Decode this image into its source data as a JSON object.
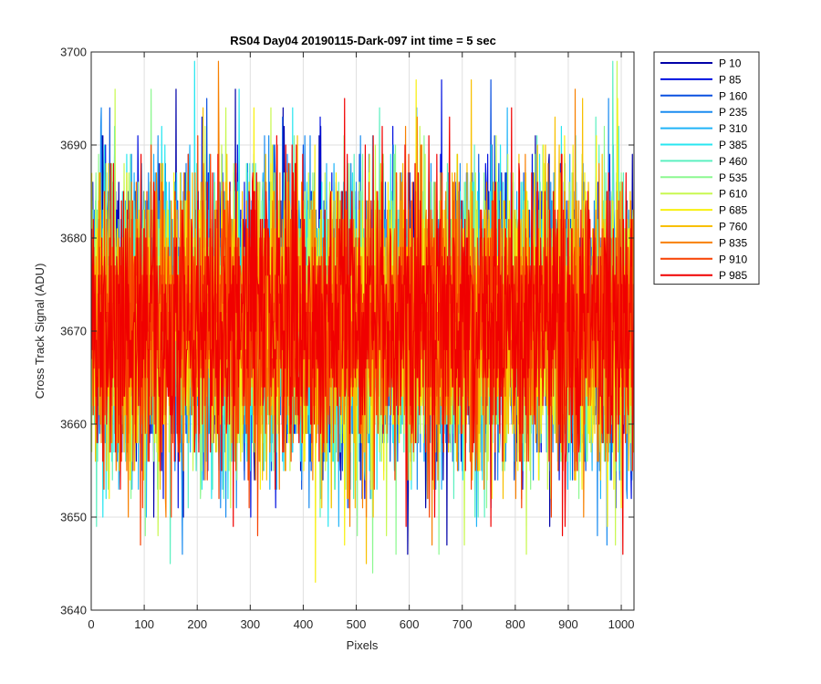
{
  "chart_data": {
    "type": "line",
    "title": "RS04 Day04 20190115-Dark-097 int time = 5 sec",
    "xlabel": "Pixels",
    "ylabel": "Cross Track Signal (ADU)",
    "xlim": [
      0,
      1024
    ],
    "ylim": [
      3640,
      3700
    ],
    "xticks": [
      0,
      100,
      200,
      300,
      400,
      500,
      600,
      700,
      800,
      900,
      1000
    ],
    "yticks": [
      3640,
      3650,
      3660,
      3670,
      3680,
      3690,
      3700
    ],
    "grid": true,
    "legend_position": "outside-top-right",
    "noise_profile": {
      "mean": 3671,
      "typical_low": 3655,
      "typical_high": 3687,
      "min": 3641,
      "max": 3699
    },
    "series": [
      {
        "name": "P 10",
        "color": "#0000a8"
      },
      {
        "name": "P 85",
        "color": "#0010e0"
      },
      {
        "name": "P 160",
        "color": "#0a50e0"
      },
      {
        "name": "P 235",
        "color": "#1a8cf0"
      },
      {
        "name": "P 310",
        "color": "#20b4f8"
      },
      {
        "name": "P 385",
        "color": "#28e6f0"
      },
      {
        "name": "P 460",
        "color": "#5cf0c0"
      },
      {
        "name": "P 535",
        "color": "#8cf890"
      },
      {
        "name": "P 610",
        "color": "#c8f850"
      },
      {
        "name": "P 685",
        "color": "#f8f010"
      },
      {
        "name": "P 760",
        "color": "#f8c000"
      },
      {
        "name": "P 835",
        "color": "#f88000"
      },
      {
        "name": "P 910",
        "color": "#f84000"
      },
      {
        "name": "P 985",
        "color": "#f00000"
      }
    ]
  }
}
